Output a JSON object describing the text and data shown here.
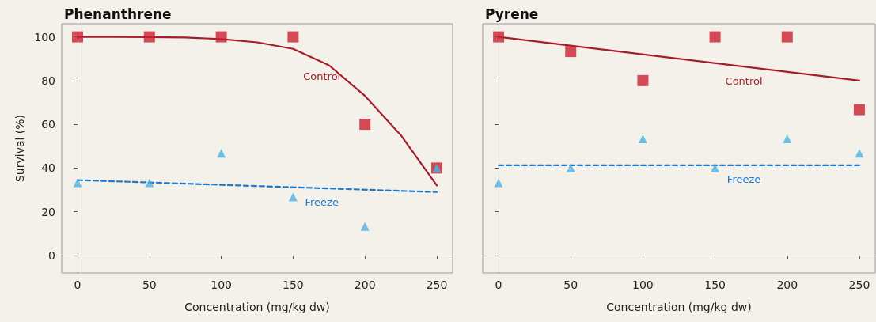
{
  "chart_data": [
    {
      "type": "scatter",
      "title": "Phenanthrene",
      "xlabel": "Concentration (mg/kg dw)",
      "ylabel": "Survival (%)",
      "xlim": [
        -11,
        261
      ],
      "xticks": [
        0,
        50,
        100,
        150,
        200,
        250
      ],
      "ylim": [
        -8,
        106
      ],
      "yticks": [
        0,
        20,
        40,
        60,
        80,
        100
      ],
      "series": [
        {
          "marker": "square",
          "color": "#c8202f",
          "x": [
            0,
            50,
            100,
            150,
            200,
            250
          ],
          "values": [
            100,
            100,
            100,
            100,
            60,
            40
          ]
        },
        {
          "marker": "triangle",
          "color": "#4fb3e0",
          "x": [
            0,
            50,
            100,
            150,
            200,
            250
          ],
          "values": [
            33.3,
            33.3,
            46.7,
            26.7,
            13.3,
            40
          ]
        },
        {
          "type": "line",
          "name": "Control",
          "marker": "none",
          "line_style": "solid",
          "color": "#a51d2d",
          "x": [
            0,
            25,
            50,
            75,
            100,
            125,
            150,
            175,
            200,
            225,
            250
          ],
          "values": [
            100,
            100,
            99.9,
            99.7,
            99,
            97.5,
            94.5,
            87,
            73,
            55,
            32
          ]
        },
        {
          "type": "line",
          "name": "Freeze",
          "marker": "none",
          "line_style": "dashed",
          "color": "#1f78c8",
          "x": [
            0,
            250
          ],
          "values": [
            34.5,
            29
          ]
        }
      ]
    },
    {
      "type": "scatter",
      "title": "Pyrene",
      "xlabel": "Concentration (mg/kg dw)",
      "xlim": [
        -11,
        261
      ],
      "xticks": [
        0,
        50,
        100,
        150,
        200,
        250
      ],
      "ylim": [
        -8,
        106
      ],
      "yticks": [
        0,
        20,
        40,
        60,
        80,
        100
      ],
      "tick_labels": "x",
      "series": [
        {
          "marker": "square",
          "color": "#c8202f",
          "x": [
            0,
            50,
            100,
            150,
            200,
            250
          ],
          "values": [
            100,
            93.3,
            80,
            100,
            100,
            66.7
          ]
        },
        {
          "marker": "triangle",
          "color": "#4fb3e0",
          "x": [
            0,
            50,
            100,
            150,
            200,
            250
          ],
          "values": [
            33.3,
            40,
            53.3,
            40,
            53.3,
            46.7
          ]
        },
        {
          "type": "line",
          "name": "Control",
          "marker": "none",
          "line_style": "solid",
          "color": "#a51d2d",
          "x": [
            0,
            250
          ],
          "values": [
            100,
            80
          ]
        },
        {
          "type": "line",
          "name": "Freeze",
          "marker": "none",
          "line_style": "dashed",
          "color": "#1f78c8",
          "x": [
            0,
            250
          ],
          "values": [
            41.3,
            41.3
          ]
        }
      ]
    }
  ]
}
